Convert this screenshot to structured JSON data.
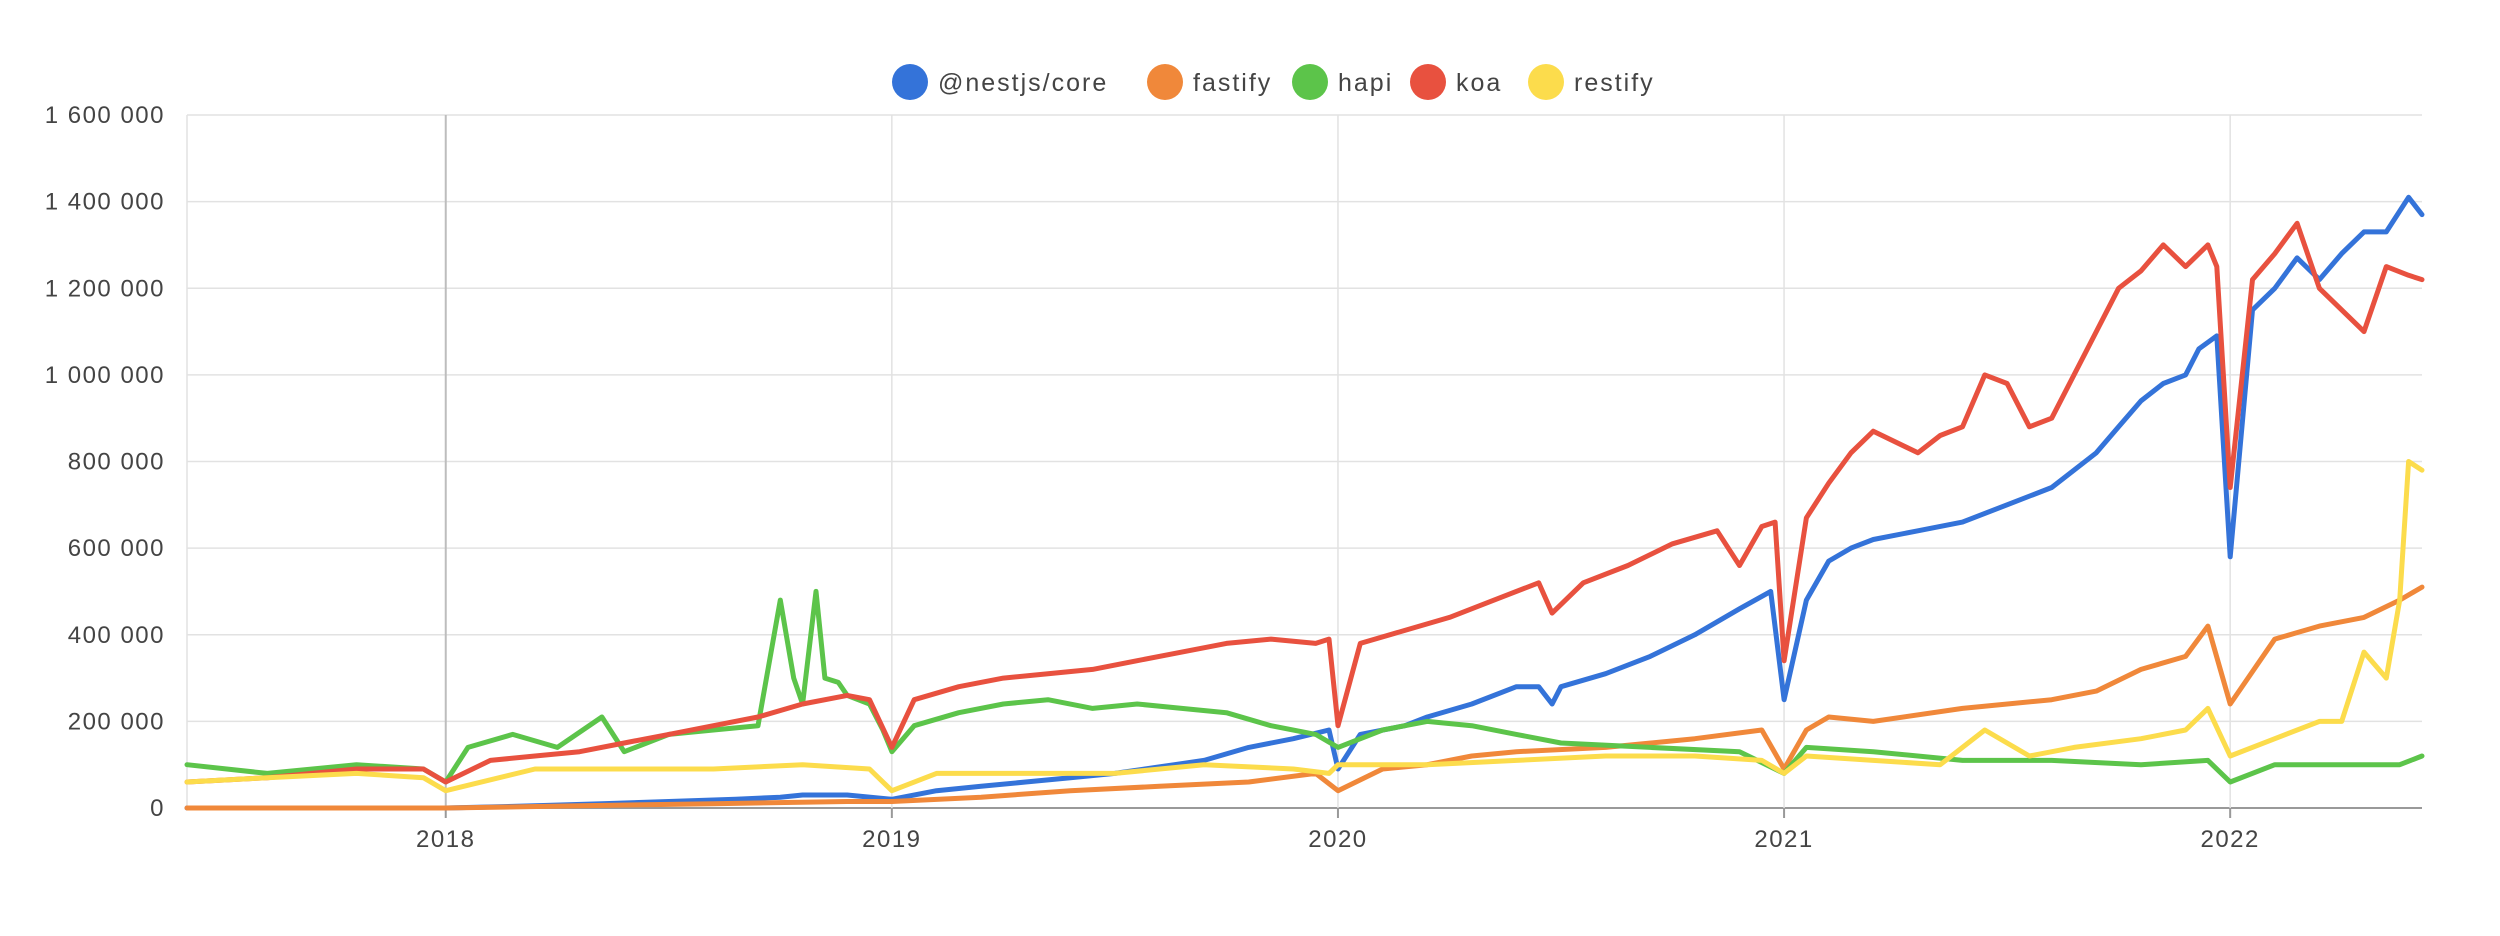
{
  "chart_data": {
    "type": "line",
    "title": "",
    "xlabel": "",
    "ylabel": "",
    "x_range": [
      2017.42,
      2022.43
    ],
    "ylim": [
      0,
      1600000
    ],
    "y_ticks": [
      0,
      200000,
      400000,
      600000,
      800000,
      1000000,
      1200000,
      1400000,
      1600000
    ],
    "y_tick_labels": [
      "0",
      "200 000",
      "400 000",
      "600 000",
      "800 000",
      "1 000 000",
      "1 200 000",
      "1 400 000",
      "1 600 000"
    ],
    "x_ticks": [
      2018,
      2019,
      2020,
      2021,
      2022
    ],
    "x_tick_labels": [
      "2018",
      "2019",
      "2020",
      "2021",
      "2022"
    ],
    "grid": true,
    "legend_position": "top-center",
    "series": [
      {
        "name": "@nestjs/core",
        "color": "#3473d9",
        "x": [
          2017.42,
          2017.7,
          2018.0,
          2018.2,
          2018.35,
          2018.5,
          2018.65,
          2018.75,
          2018.8,
          2018.9,
          2019.0,
          2019.1,
          2019.2,
          2019.3,
          2019.4,
          2019.5,
          2019.6,
          2019.7,
          2019.8,
          2019.9,
          2019.98,
          2020.0,
          2020.05,
          2020.15,
          2020.2,
          2020.3,
          2020.4,
          2020.45,
          2020.48,
          2020.5,
          2020.6,
          2020.7,
          2020.8,
          2020.9,
          2020.97,
          2021.0,
          2021.05,
          2021.1,
          2021.15,
          2021.2,
          2021.3,
          2021.4,
          2021.5,
          2021.6,
          2021.7,
          2021.75,
          2021.8,
          2021.85,
          2021.9,
          2021.93,
          2021.97,
          2022.0,
          2022.05,
          2022.1,
          2022.15,
          2022.2,
          2022.25,
          2022.3,
          2022.35,
          2022.4,
          2022.43
        ],
        "values": [
          0,
          0,
          0,
          5000,
          10000,
          15000,
          20000,
          25000,
          30000,
          30000,
          20000,
          40000,
          50000,
          60000,
          70000,
          80000,
          95000,
          110000,
          140000,
          160000,
          180000,
          90000,
          170000,
          190000,
          210000,
          240000,
          280000,
          280000,
          240000,
          280000,
          310000,
          350000,
          400000,
          460000,
          500000,
          250000,
          480000,
          570000,
          600000,
          620000,
          640000,
          660000,
          700000,
          740000,
          820000,
          880000,
          940000,
          980000,
          1000000,
          1060000,
          1090000,
          580000,
          1150000,
          1200000,
          1270000,
          1220000,
          1280000,
          1330000,
          1330000,
          1410000,
          1370000
        ]
      },
      {
        "name": "fastify",
        "color": "#f0883a",
        "x": [
          2017.42,
          2017.8,
          2018.0,
          2018.3,
          2018.6,
          2018.9,
          2019.0,
          2019.2,
          2019.4,
          2019.6,
          2019.8,
          2019.95,
          2020.0,
          2020.1,
          2020.2,
          2020.3,
          2020.4,
          2020.6,
          2020.8,
          2020.95,
          2021.0,
          2021.05,
          2021.1,
          2021.2,
          2021.4,
          2021.6,
          2021.7,
          2021.8,
          2021.9,
          2021.95,
          2022.0,
          2022.1,
          2022.2,
          2022.3,
          2022.38,
          2022.43
        ],
        "values": [
          0,
          0,
          0,
          5000,
          10000,
          15000,
          15000,
          25000,
          40000,
          50000,
          60000,
          80000,
          40000,
          90000,
          100000,
          120000,
          130000,
          140000,
          160000,
          180000,
          90000,
          180000,
          210000,
          200000,
          230000,
          250000,
          270000,
          320000,
          350000,
          420000,
          240000,
          390000,
          420000,
          440000,
          480000,
          510000
        ]
      },
      {
        "name": "hapi",
        "color": "#5cc44a",
        "x": [
          2017.42,
          2017.6,
          2017.8,
          2017.95,
          2018.0,
          2018.05,
          2018.15,
          2018.25,
          2018.35,
          2018.4,
          2018.5,
          2018.6,
          2018.7,
          2018.75,
          2018.78,
          2018.8,
          2018.83,
          2018.85,
          2018.88,
          2018.9,
          2018.95,
          2018.98,
          2019.0,
          2019.05,
          2019.15,
          2019.25,
          2019.35,
          2019.45,
          2019.55,
          2019.65,
          2019.75,
          2019.85,
          2019.95,
          2020.0,
          2020.1,
          2020.2,
          2020.3,
          2020.4,
          2020.5,
          2020.7,
          2020.9,
          2021.0,
          2021.05,
          2021.2,
          2021.4,
          2021.6,
          2021.8,
          2021.95,
          2022.0,
          2022.1,
          2022.2,
          2022.3,
          2022.38,
          2022.43
        ],
        "values": [
          100000,
          80000,
          100000,
          90000,
          60000,
          140000,
          170000,
          140000,
          210000,
          130000,
          170000,
          180000,
          190000,
          480000,
          300000,
          240000,
          500000,
          300000,
          290000,
          260000,
          240000,
          180000,
          130000,
          190000,
          220000,
          240000,
          250000,
          230000,
          240000,
          230000,
          220000,
          190000,
          170000,
          140000,
          180000,
          200000,
          190000,
          170000,
          150000,
          140000,
          130000,
          80000,
          140000,
          130000,
          110000,
          110000,
          100000,
          110000,
          60000,
          100000,
          100000,
          100000,
          100000,
          120000
        ]
      },
      {
        "name": "koa",
        "color": "#e8513f",
        "x": [
          2017.42,
          2017.6,
          2017.8,
          2017.95,
          2018.0,
          2018.1,
          2018.2,
          2018.3,
          2018.4,
          2018.5,
          2018.6,
          2018.7,
          2018.8,
          2018.9,
          2018.95,
          2019.0,
          2019.05,
          2019.15,
          2019.25,
          2019.35,
          2019.45,
          2019.55,
          2019.65,
          2019.75,
          2019.85,
          2019.95,
          2019.98,
          2020.0,
          2020.05,
          2020.15,
          2020.25,
          2020.35,
          2020.45,
          2020.48,
          2020.55,
          2020.65,
          2020.75,
          2020.85,
          2020.9,
          2020.95,
          2020.98,
          2021.0,
          2021.05,
          2021.1,
          2021.15,
          2021.2,
          2021.3,
          2021.35,
          2021.4,
          2021.45,
          2021.5,
          2021.55,
          2021.6,
          2021.7,
          2021.75,
          2021.8,
          2021.85,
          2021.9,
          2021.95,
          2021.97,
          2022.0,
          2022.05,
          2022.1,
          2022.15,
          2022.2,
          2022.25,
          2022.3,
          2022.35,
          2022.4,
          2022.43
        ],
        "values": [
          60000,
          70000,
          90000,
          90000,
          60000,
          110000,
          120000,
          130000,
          150000,
          170000,
          190000,
          210000,
          240000,
          260000,
          250000,
          140000,
          250000,
          280000,
          300000,
          310000,
          320000,
          340000,
          360000,
          380000,
          390000,
          380000,
          390000,
          190000,
          380000,
          410000,
          440000,
          480000,
          520000,
          450000,
          520000,
          560000,
          610000,
          640000,
          560000,
          650000,
          660000,
          340000,
          670000,
          750000,
          820000,
          870000,
          820000,
          860000,
          880000,
          1000000,
          980000,
          880000,
          900000,
          1100000,
          1200000,
          1240000,
          1300000,
          1250000,
          1300000,
          1250000,
          740000,
          1220000,
          1280000,
          1350000,
          1200000,
          1150000,
          1100000,
          1250000,
          1230000,
          1220000
        ]
      },
      {
        "name": "restify",
        "color": "#fcdc4c",
        "x": [
          2017.42,
          2017.6,
          2017.8,
          2017.95,
          2018.0,
          2018.2,
          2018.4,
          2018.6,
          2018.8,
          2018.95,
          2019.0,
          2019.1,
          2019.3,
          2019.5,
          2019.7,
          2019.9,
          2019.98,
          2020.0,
          2020.2,
          2020.4,
          2020.6,
          2020.8,
          2020.95,
          2021.0,
          2021.05,
          2021.2,
          2021.35,
          2021.45,
          2021.55,
          2021.65,
          2021.8,
          2021.9,
          2021.95,
          2022.0,
          2022.1,
          2022.2,
          2022.25,
          2022.3,
          2022.35,
          2022.38,
          2022.4,
          2022.43
        ],
        "values": [
          60000,
          70000,
          80000,
          70000,
          40000,
          90000,
          90000,
          90000,
          100000,
          90000,
          40000,
          80000,
          80000,
          80000,
          100000,
          90000,
          80000,
          100000,
          100000,
          110000,
          120000,
          120000,
          110000,
          80000,
          120000,
          110000,
          100000,
          180000,
          120000,
          140000,
          160000,
          180000,
          230000,
          120000,
          160000,
          200000,
          200000,
          360000,
          300000,
          480000,
          800000,
          780000
        ]
      }
    ]
  }
}
